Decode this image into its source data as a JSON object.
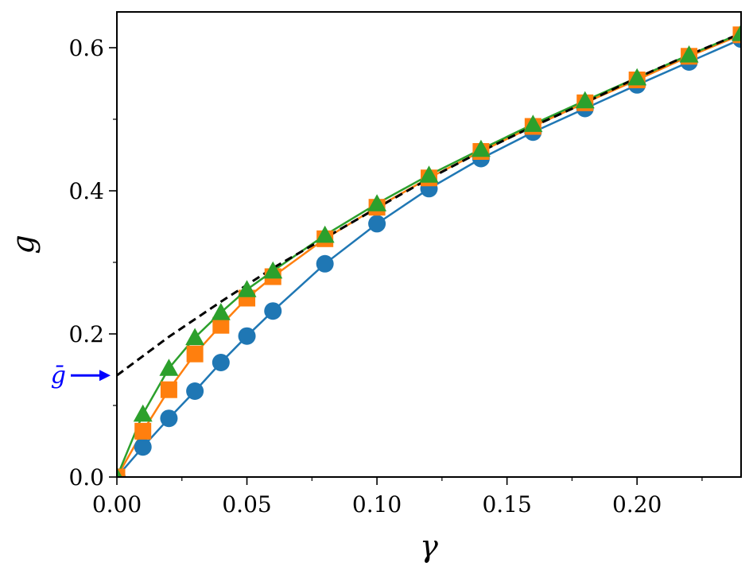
{
  "chart_data": {
    "type": "line",
    "xlabel": "γ",
    "ylabel": "g",
    "xlim": [
      0.0,
      0.24
    ],
    "ylim": [
      0.0,
      0.65
    ],
    "x_major_ticks": [
      0.0,
      0.05,
      0.1,
      0.15,
      0.2
    ],
    "x_tick_labels": [
      "0.00",
      "0.05",
      "0.10",
      "0.15",
      "0.20"
    ],
    "y_major_ticks": [
      0.0,
      0.2,
      0.4,
      0.6
    ],
    "y_tick_labels": [
      "0.0",
      "0.2",
      "0.4",
      "0.6"
    ],
    "grid": false,
    "series": [
      {
        "marker": "circle",
        "color": "#1f77b4",
        "x": [
          0.0,
          0.01,
          0.02,
          0.03,
          0.04,
          0.05,
          0.06,
          0.08,
          0.1,
          0.12,
          0.14,
          0.16,
          0.18,
          0.2,
          0.22,
          0.24
        ],
        "y": [
          0.0,
          0.042,
          0.082,
          0.12,
          0.16,
          0.197,
          0.232,
          0.298,
          0.354,
          0.403,
          0.445,
          0.482,
          0.515,
          0.548,
          0.58,
          0.612
        ]
      },
      {
        "marker": "square",
        "color": "#ff7f0e",
        "x": [
          0.0,
          0.01,
          0.02,
          0.03,
          0.04,
          0.05,
          0.06,
          0.08,
          0.1,
          0.12,
          0.14,
          0.16,
          0.18,
          0.2,
          0.22,
          0.24
        ],
        "y": [
          0.0,
          0.064,
          0.122,
          0.172,
          0.212,
          0.25,
          0.28,
          0.333,
          0.377,
          0.418,
          0.455,
          0.49,
          0.523,
          0.555,
          0.588,
          0.618
        ]
      },
      {
        "marker": "triangle",
        "color": "#2ca02c",
        "x": [
          0.0,
          0.01,
          0.02,
          0.03,
          0.04,
          0.05,
          0.06,
          0.08,
          0.1,
          0.12,
          0.14,
          0.16,
          0.18,
          0.2,
          0.22,
          0.24
        ],
        "y": [
          0.0,
          0.088,
          0.152,
          0.195,
          0.23,
          0.262,
          0.288,
          0.338,
          0.382,
          0.422,
          0.458,
          0.493,
          0.526,
          0.558,
          0.59,
          0.62
        ]
      },
      {
        "style": "dashed",
        "color": "#000000",
        "x": [
          0.0,
          0.02,
          0.04,
          0.06,
          0.08,
          0.1,
          0.12,
          0.14,
          0.16,
          0.18,
          0.2,
          0.22,
          0.24
        ],
        "y": [
          0.142,
          0.196,
          0.245,
          0.292,
          0.334,
          0.376,
          0.417,
          0.455,
          0.49,
          0.523,
          0.558,
          0.59,
          0.62
        ]
      }
    ],
    "annotations": [
      {
        "text": "ḡ",
        "points_to": [
          0.0,
          0.142
        ],
        "color": "#0000ff",
        "arrow": true
      }
    ]
  }
}
